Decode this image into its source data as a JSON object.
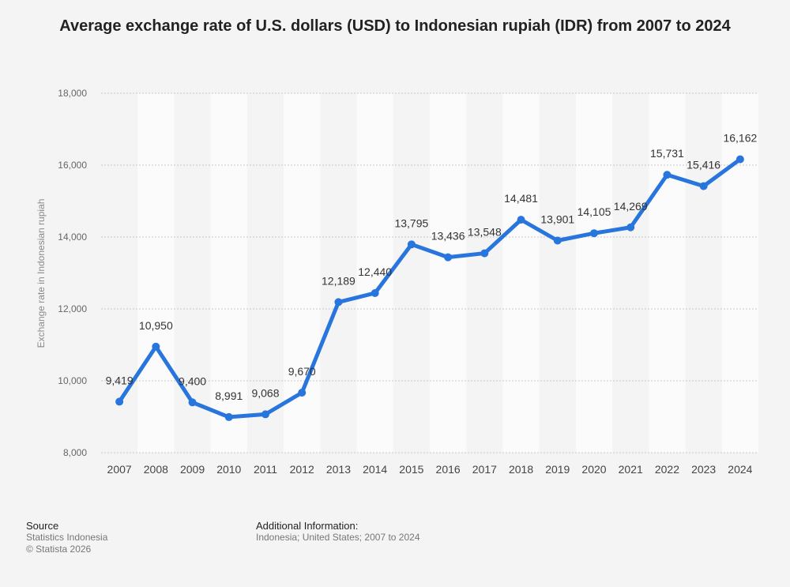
{
  "chart_data": {
    "type": "line",
    "title": "Average exchange rate of U.S. dollars (USD) to Indonesian rupiah (IDR) from 2007 to 2024",
    "xlabel": "",
    "ylabel": "Exchange rate in Indonesian rupiah",
    "categories": [
      "2007",
      "2008",
      "2009",
      "2010",
      "2011",
      "2012",
      "2013",
      "2014",
      "2015",
      "2016",
      "2017",
      "2018",
      "2019",
      "2020",
      "2021",
      "2022",
      "2023",
      "2024"
    ],
    "values": [
      9419,
      10950,
      9400,
      8991,
      9068,
      9670,
      12189,
      12440,
      13795,
      13436,
      13548,
      14481,
      13901,
      14105,
      14269,
      15731,
      15416,
      16162
    ],
    "data_labels": [
      "9,419",
      "10,950",
      "9,400",
      "8,991",
      "9,068",
      "9,670",
      "12,189",
      "12,440",
      "13,795",
      "13,436",
      "13,548",
      "14,481",
      "13,901",
      "14,105",
      "14,269",
      "15,731",
      "15,416",
      "16,162"
    ],
    "ylim": [
      8000,
      18000
    ],
    "yticks": [
      8000,
      10000,
      12000,
      14000,
      16000,
      18000
    ],
    "ytick_labels": [
      "8,000",
      "10,000",
      "12,000",
      "14,000",
      "16,000",
      "18,000"
    ],
    "grid": true,
    "line_color": "#2876dd"
  },
  "footer": {
    "source_heading": "Source",
    "source_name": "Statistics Indonesia",
    "copyright": "© Statista 2026",
    "additional_heading": "Additional Information:",
    "additional_text": "Indonesia; United States; 2007 to 2024"
  }
}
